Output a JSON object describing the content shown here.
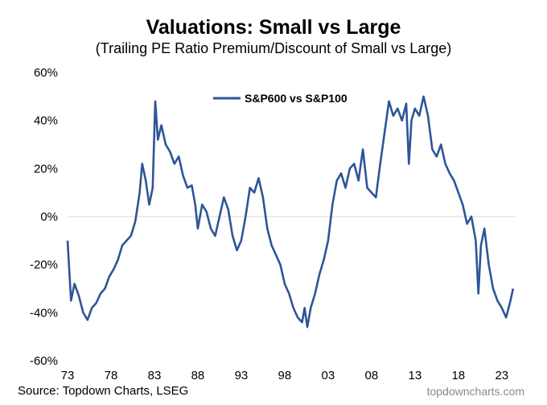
{
  "chart_data": {
    "type": "line",
    "title": "Valuations: Small vs Large",
    "subtitle": "(Trailing PE Ratio Premium/Discount of Small vs Large)",
    "xlabel": "",
    "ylabel": "",
    "xlim": [
      1973,
      2024.5
    ],
    "ylim": [
      -60,
      60
    ],
    "x_tick_values": [
      1973,
      1978,
      1983,
      1988,
      1993,
      1998,
      2003,
      2008,
      2013,
      2018,
      2023
    ],
    "x_tick_labels": [
      "73",
      "78",
      "83",
      "88",
      "93",
      "98",
      "03",
      "08",
      "13",
      "18",
      "23"
    ],
    "y_tick_values": [
      60,
      40,
      20,
      0,
      -20,
      -40,
      -60
    ],
    "y_tick_labels": [
      "60%",
      "40%",
      "20%",
      "0%",
      "-20%",
      "-40%",
      "-60%"
    ],
    "grid": false,
    "zero_line": true,
    "legend_position": "top-center",
    "colors": {
      "series": "#2e5597",
      "zero_line": "#d9d9d9"
    },
    "series": [
      {
        "name": "S&P600 vs S&P100",
        "x": [
          1973.0,
          1973.4,
          1973.8,
          1974.3,
          1974.8,
          1975.3,
          1975.8,
          1976.3,
          1976.8,
          1977.3,
          1977.8,
          1978.3,
          1978.8,
          1979.3,
          1979.8,
          1980.3,
          1980.8,
          1981.3,
          1981.6,
          1982.0,
          1982.4,
          1982.8,
          1983.1,
          1983.4,
          1983.8,
          1984.3,
          1984.8,
          1985.3,
          1985.8,
          1986.3,
          1986.8,
          1987.3,
          1987.7,
          1988.0,
          1988.5,
          1989.0,
          1989.5,
          1990.0,
          1990.5,
          1991.0,
          1991.5,
          1992.0,
          1992.5,
          1993.0,
          1993.5,
          1994.0,
          1994.5,
          1995.0,
          1995.5,
          1996.0,
          1996.5,
          1997.0,
          1997.5,
          1998.0,
          1998.5,
          1999.0,
          1999.5,
          2000.0,
          2000.3,
          2000.6,
          2001.0,
          2001.5,
          2002.0,
          2002.5,
          2003.0,
          2003.5,
          2004.0,
          2004.5,
          2005.0,
          2005.5,
          2006.0,
          2006.5,
          2007.0,
          2007.5,
          2008.0,
          2008.5,
          2009.0,
          2009.5,
          2010.0,
          2010.5,
          2011.0,
          2011.5,
          2012.0,
          2012.3,
          2012.6,
          2013.0,
          2013.5,
          2014.0,
          2014.5,
          2015.0,
          2015.5,
          2016.0,
          2016.5,
          2017.0,
          2017.5,
          2018.0,
          2018.5,
          2019.0,
          2019.5,
          2020.0,
          2020.3,
          2020.6,
          2021.0,
          2021.5,
          2022.0,
          2022.5,
          2023.0,
          2023.5,
          2024.0,
          2024.3
        ],
        "values": [
          -10,
          -35,
          -28,
          -33,
          -40,
          -43,
          -38,
          -36,
          -32,
          -30,
          -25,
          -22,
          -18,
          -12,
          -10,
          -8,
          -2,
          10,
          22,
          15,
          5,
          12,
          48,
          32,
          38,
          30,
          27,
          22,
          25,
          17,
          12,
          13,
          5,
          -5,
          5,
          2,
          -5,
          -8,
          0,
          8,
          3,
          -8,
          -14,
          -10,
          0,
          12,
          10,
          16,
          8,
          -5,
          -12,
          -16,
          -20,
          -28,
          -32,
          -38,
          -42,
          -44,
          -38,
          -46,
          -38,
          -32,
          -24,
          -18,
          -10,
          5,
          15,
          18,
          12,
          20,
          22,
          15,
          28,
          12,
          10,
          8,
          22,
          35,
          48,
          42,
          45,
          40,
          47,
          22,
          40,
          45,
          42,
          50,
          42,
          28,
          25,
          30,
          22,
          18,
          15,
          10,
          5,
          -3,
          0,
          -10,
          -32,
          -12,
          -5,
          -20,
          -30,
          -35,
          -38,
          -42,
          -35,
          -30
        ]
      }
    ]
  },
  "source_text": "Source: Topdown Charts, LSEG",
  "credit_text": "topdowncharts.com"
}
